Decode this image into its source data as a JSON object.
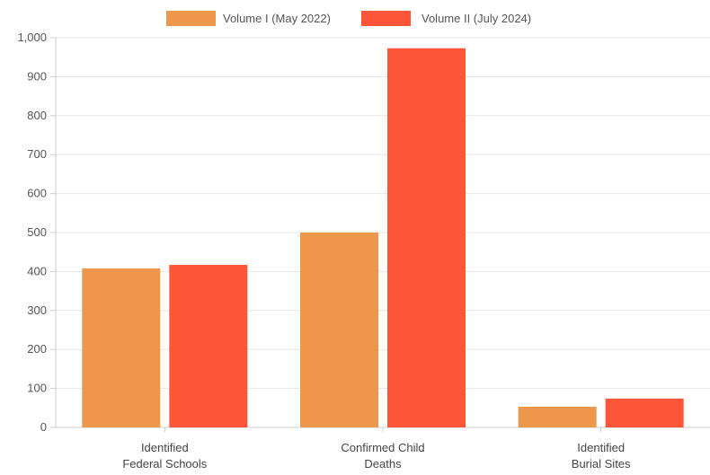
{
  "chart_data": {
    "type": "bar",
    "categories": [
      [
        "Identified",
        "Federal Schools"
      ],
      [
        "Confirmed Child",
        "Deaths"
      ],
      [
        "Identified",
        "Burial Sites"
      ]
    ],
    "series": [
      {
        "name": "Volume I (May 2022)",
        "color": "#ec974b",
        "values": [
          408,
          500,
          53
        ]
      },
      {
        "name": "Volume II (July 2024)",
        "color": "#fa5637",
        "values": [
          417,
          973,
          74
        ]
      }
    ],
    "yticks": [
      "0",
      "100",
      "200",
      "300",
      "400",
      "500",
      "600",
      "700",
      "800",
      "900",
      "1,000"
    ],
    "ylim": [
      0,
      1000
    ],
    "grid": true,
    "legend_position": "top-center"
  }
}
